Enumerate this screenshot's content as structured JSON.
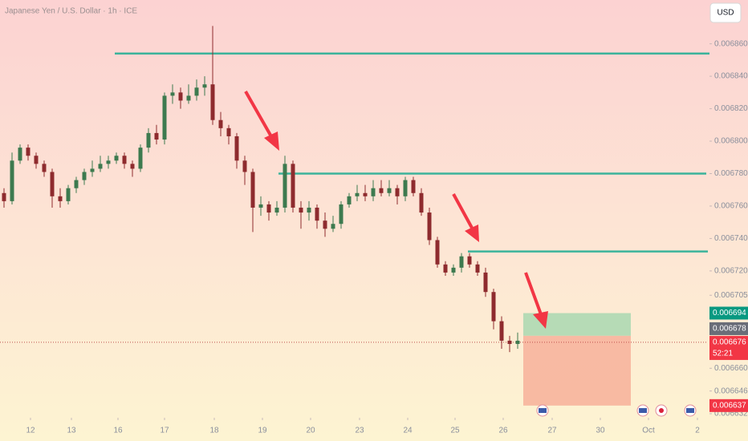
{
  "chart_data": {
    "type": "candlestick",
    "title": "Japanese Yen / U.S. Dollar · 1h · ICE",
    "currency": "USD",
    "countdown": "52:21",
    "up_color": "#3d7a4f",
    "down_color": "#8e2b2e",
    "open": [
      0.006768,
      0.006763,
      0.006788,
      0.006796,
      0.006791,
      0.006786,
      0.006781,
      0.006766,
      0.006763,
      0.006771,
      0.006776,
      0.006781,
      0.006783,
      0.006786,
      0.006788,
      0.006791,
      0.006786,
      0.006783,
      0.006796,
      0.006805,
      0.006801,
      0.006828,
      0.00683,
      0.006825,
      0.006828,
      0.006833,
      0.006835,
      0.006813,
      0.006808,
      0.006803,
      0.006788,
      0.006781,
      0.006759,
      0.006761,
      0.006756,
      0.006759,
      0.006786,
      0.006759,
      0.006756,
      0.006759,
      0.006751,
      0.006746,
      0.006749,
      0.006761,
      0.006766,
      0.006768,
      0.006766,
      0.006771,
      0.006768,
      0.006771,
      0.006766,
      0.006776,
      0.006768,
      0.006756,
      0.006739,
      0.006724,
      0.006719,
      0.006722,
      0.006729,
      0.006724,
      0.006719,
      0.006707,
      0.006689,
      0.006677,
      0.006675
    ],
    "high": [
      0.006771,
      0.006793,
      0.006798,
      0.006798,
      0.006793,
      0.006788,
      0.006783,
      0.006771,
      0.006773,
      0.006778,
      0.006783,
      0.006788,
      0.006791,
      0.006791,
      0.006793,
      0.006793,
      0.006788,
      0.006798,
      0.006808,
      0.00681,
      0.00683,
      0.006835,
      0.006833,
      0.006835,
      0.006838,
      0.00684,
      0.006871,
      0.006818,
      0.00681,
      0.006805,
      0.006791,
      0.006783,
      0.006766,
      0.006763,
      0.006763,
      0.006791,
      0.006788,
      0.006763,
      0.006763,
      0.006761,
      0.006756,
      0.006754,
      0.006763,
      0.006768,
      0.006773,
      0.006773,
      0.006776,
      0.006776,
      0.006776,
      0.006773,
      0.006778,
      0.006778,
      0.006771,
      0.006759,
      0.006741,
      0.006726,
      0.006724,
      0.006731,
      0.006731,
      0.006726,
      0.006722,
      0.006709,
      0.006692,
      0.00668,
      0.006682
    ],
    "low": [
      0.006759,
      0.006761,
      0.006786,
      0.006788,
      0.006783,
      0.006778,
      0.006759,
      0.006759,
      0.006761,
      0.006768,
      0.006773,
      0.006778,
      0.006781,
      0.006783,
      0.006786,
      0.006783,
      0.006778,
      0.006781,
      0.006793,
      0.006798,
      0.006798,
      0.006823,
      0.00682,
      0.006823,
      0.006825,
      0.006828,
      0.00681,
      0.006803,
      0.006798,
      0.006783,
      0.006773,
      0.006744,
      0.006754,
      0.006751,
      0.006754,
      0.006756,
      0.006756,
      0.006746,
      0.006751,
      0.006746,
      0.006741,
      0.006744,
      0.006746,
      0.006759,
      0.006763,
      0.006763,
      0.006763,
      0.006766,
      0.006766,
      0.006761,
      0.006763,
      0.006766,
      0.006754,
      0.006736,
      0.006722,
      0.006717,
      0.006717,
      0.006719,
      0.006722,
      0.006717,
      0.006704,
      0.006684,
      0.006672,
      0.00667,
      0.006672
    ],
    "close": [
      0.006763,
      0.006788,
      0.006796,
      0.006791,
      0.006786,
      0.006781,
      0.006766,
      0.006763,
      0.006771,
      0.006776,
      0.006781,
      0.006783,
      0.006786,
      0.006788,
      0.006791,
      0.006786,
      0.006783,
      0.006796,
      0.006805,
      0.006801,
      0.006828,
      0.00683,
      0.006825,
      0.006828,
      0.006833,
      0.006835,
      0.006813,
      0.006808,
      0.006803,
      0.006788,
      0.006781,
      0.006759,
      0.006761,
      0.006756,
      0.006759,
      0.006786,
      0.006759,
      0.006756,
      0.006759,
      0.006751,
      0.006746,
      0.006749,
      0.006761,
      0.006766,
      0.006768,
      0.006766,
      0.006771,
      0.006768,
      0.006771,
      0.006766,
      0.006776,
      0.006768,
      0.006756,
      0.006739,
      0.006724,
      0.006719,
      0.006722,
      0.006729,
      0.006724,
      0.006719,
      0.006707,
      0.006689,
      0.006677,
      0.006675,
      0.006677
    ],
    "xlim": [
      0,
      88
    ],
    "xticks": [
      {
        "value": 3.8,
        "label": "12"
      },
      {
        "value": 8.9,
        "label": "13"
      },
      {
        "value": 14.7,
        "label": "16"
      },
      {
        "value": 20.5,
        "label": "17"
      },
      {
        "value": 26.7,
        "label": "18"
      },
      {
        "value": 32.7,
        "label": "19"
      },
      {
        "value": 38.7,
        "label": "20"
      },
      {
        "value": 44.8,
        "label": "23"
      },
      {
        "value": 50.8,
        "label": "24"
      },
      {
        "value": 56.7,
        "label": "25"
      },
      {
        "value": 62.7,
        "label": "26"
      },
      {
        "value": 68.8,
        "label": "27"
      },
      {
        "value": 74.8,
        "label": "30"
      },
      {
        "value": 80.8,
        "label": "Oct"
      },
      {
        "value": 86.9,
        "label": "2"
      }
    ],
    "ylim": [
      0.00663,
      0.006887
    ],
    "yticks": [
      {
        "value": 0.00686,
        "label": "0.006860"
      },
      {
        "value": 0.00684,
        "label": "0.006840"
      },
      {
        "value": 0.00682,
        "label": "0.006820"
      },
      {
        "value": 0.0068,
        "label": "0.006800"
      },
      {
        "value": 0.00678,
        "label": "0.006780"
      },
      {
        "value": 0.00676,
        "label": "0.006760"
      },
      {
        "value": 0.00674,
        "label": "0.006740"
      },
      {
        "value": 0.00672,
        "label": "0.006720"
      },
      0.006705,
      {
        "value": 0.00666,
        "label": "0.006660"
      },
      0.006646,
      0.006632
    ],
    "levels": [
      {
        "value": 0.006854,
        "x_start": 14.3,
        "x_end": 88.4,
        "color": "#3bb39b"
      },
      {
        "value": 0.00678,
        "x_start": 34.7,
        "x_end": 88.0,
        "color": "#3bb39b"
      },
      {
        "value": 0.006732,
        "x_start": 58.3,
        "x_end": 88.2,
        "color": "#3bb39b"
      }
    ],
    "position": {
      "x_start": 65.2,
      "x_end": 78.6,
      "target": 0.006694,
      "entry": 0.00668,
      "stop": 0.006637,
      "profit_color": "#a9d8b0",
      "loss_color": "#f7b09a"
    },
    "current_price": 0.006676,
    "price_markers": [
      {
        "value": 0.006694,
        "color": "#089981"
      },
      {
        "value": 0.006678,
        "color": "#6a6d78"
      },
      {
        "value": 0.006676,
        "color": "#f23645"
      },
      {
        "value": 0.006637,
        "color": "#f23645"
      }
    ]
  }
}
